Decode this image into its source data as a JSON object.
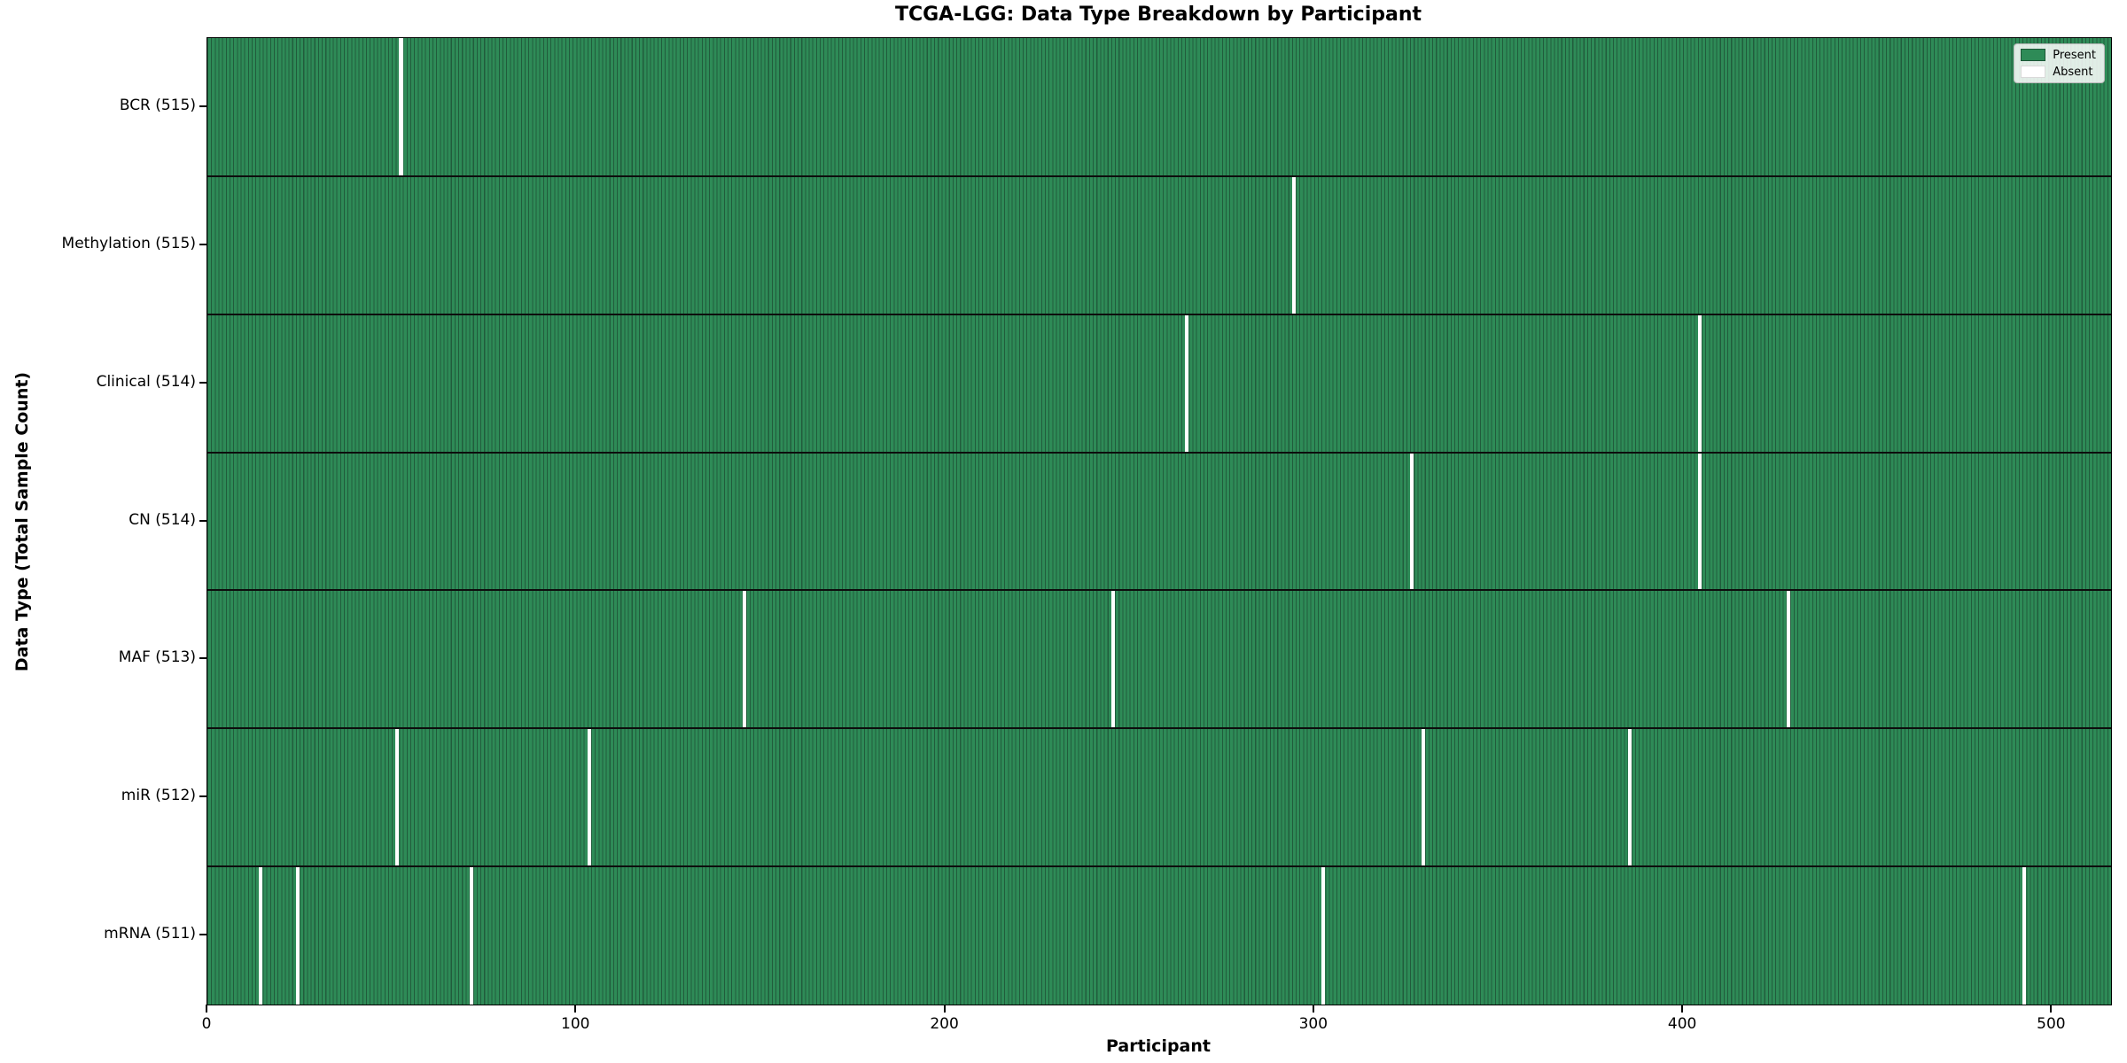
{
  "title": "TCGA-LGG: Data Type Breakdown by Participant",
  "xlabel": "Participant",
  "ylabel": "Data Type (Total Sample Count)",
  "legend": {
    "present_label": "Present",
    "absent_label": "Absent"
  },
  "colors": {
    "present": "#2e8b57",
    "absent": "#ffffff"
  },
  "chart_data": {
    "type": "heatmap",
    "title": "TCGA-LGG: Data Type Breakdown by Participant",
    "xlabel": "Participant",
    "ylabel": "Data Type (Total Sample Count)",
    "x_ticks": [
      0,
      100,
      200,
      300,
      400,
      500
    ],
    "x_range": [
      0,
      516
    ],
    "n_participants": 516,
    "legend_position": "upper right",
    "rows": [
      {
        "label": "BCR (515)",
        "name": "BCR",
        "total": 515,
        "absent_participants": [
          52
        ]
      },
      {
        "label": "Methylation (515)",
        "name": "Methylation",
        "total": 515,
        "absent_participants": [
          294
        ]
      },
      {
        "label": "Clinical (514)",
        "name": "Clinical",
        "total": 514,
        "absent_participants": [
          265,
          404
        ]
      },
      {
        "label": "CN (514)",
        "name": "CN",
        "total": 514,
        "absent_participants": [
          326,
          404
        ]
      },
      {
        "label": "MAF (513)",
        "name": "MAF",
        "total": 513,
        "absent_participants": [
          145,
          245,
          428
        ]
      },
      {
        "label": "miR (512)",
        "name": "miR",
        "total": 512,
        "absent_participants": [
          51,
          103,
          329,
          385
        ]
      },
      {
        "label": "mRNA (511)",
        "name": "mRNA",
        "total": 511,
        "absent_participants": [
          14,
          24,
          71,
          302,
          492
        ]
      }
    ]
  }
}
